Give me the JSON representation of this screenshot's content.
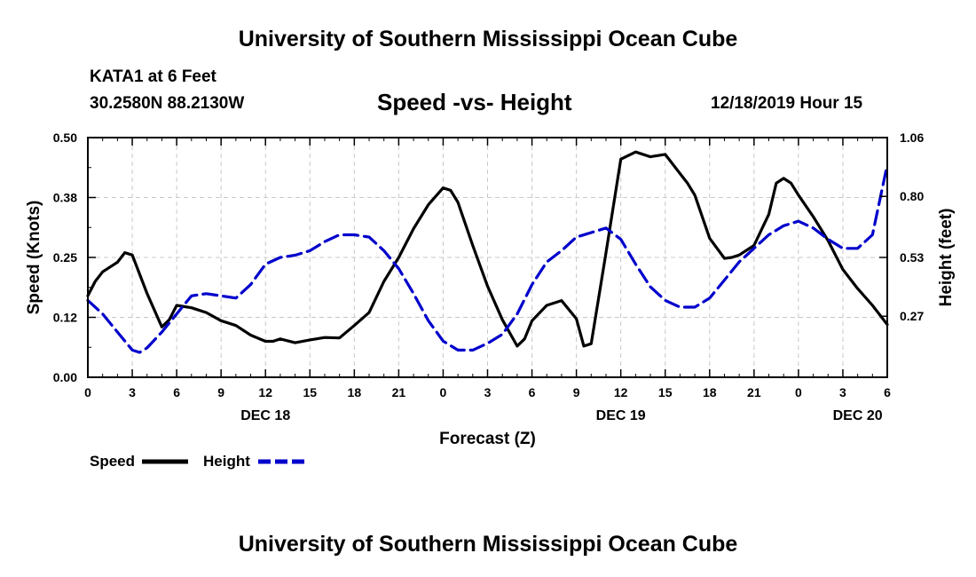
{
  "header": {
    "title": "University of Southern Mississippi Ocean Cube",
    "station": "KATA1 at 6 Feet",
    "coords": "30.2580N 88.2130W",
    "timestamp": "12/18/2019 Hour 15"
  },
  "footer": {
    "title": "University of Southern Mississippi Ocean Cube"
  },
  "chart_data": {
    "type": "line",
    "title": "Speed -vs- Height",
    "xlabel": "Forecast (Z)",
    "ylabel": "Speed (Knots)",
    "y2label": "Height (feet)",
    "xlim": [
      0,
      54
    ],
    "ylim": [
      0,
      0.5
    ],
    "y2lim": [
      0.0,
      1.06
    ],
    "x_ticks": [
      0,
      3,
      6,
      9,
      12,
      15,
      18,
      21,
      24,
      27,
      30,
      33,
      36,
      39,
      42,
      45,
      48,
      51,
      54
    ],
    "x_tick_labels": [
      "0",
      "3",
      "6",
      "9",
      "12",
      "15",
      "18",
      "21",
      "0",
      "3",
      "6",
      "9",
      "12",
      "15",
      "18",
      "21",
      "0",
      "3",
      "6"
    ],
    "date_labels": [
      {
        "x": 12,
        "label": "DEC 18"
      },
      {
        "x": 36,
        "label": "DEC 19"
      },
      {
        "x": 52,
        "label": "DEC 20"
      }
    ],
    "y_ticks": [
      0.0,
      0.125,
      0.25,
      0.375,
      0.5
    ],
    "y_tick_labels": [
      "0.00",
      "0.12",
      "0.25",
      "0.38",
      "0.50"
    ],
    "y2_ticks": [
      0.27,
      0.53,
      0.8,
      1.06
    ],
    "y2_tick_labels": [
      "0.27",
      "0.53",
      "0.80",
      "1.06"
    ],
    "gridlines": true,
    "legend_position": "bottom-left",
    "series": [
      {
        "name": "Speed",
        "axis": "left",
        "color": "#000000",
        "dash": "solid",
        "x": [
          0,
          0.5,
          1,
          1.5,
          2,
          2.5,
          3,
          4,
          5,
          5.5,
          6,
          7,
          8,
          9,
          10,
          11,
          12,
          12.5,
          13,
          14,
          15,
          16,
          17,
          18,
          19,
          20,
          21,
          22,
          23,
          24,
          24.5,
          25,
          26,
          27,
          28,
          29,
          29.5,
          30,
          31,
          32,
          33,
          33.5,
          34,
          35,
          36,
          37,
          38,
          39,
          40,
          40.5,
          41,
          42,
          43,
          43.5,
          44,
          45,
          46,
          46.5,
          47,
          47.5,
          48,
          49,
          50,
          51,
          52,
          53,
          54
        ],
        "values": [
          0.17,
          0.2,
          0.22,
          0.23,
          0.24,
          0.26,
          0.255,
          0.175,
          0.105,
          0.12,
          0.15,
          0.145,
          0.135,
          0.118,
          0.108,
          0.088,
          0.075,
          0.075,
          0.08,
          0.072,
          0.078,
          0.083,
          0.082,
          0.108,
          0.135,
          0.2,
          0.25,
          0.31,
          0.36,
          0.395,
          0.39,
          0.365,
          0.275,
          0.19,
          0.12,
          0.065,
          0.08,
          0.118,
          0.15,
          0.16,
          0.122,
          0.065,
          0.07,
          0.26,
          0.455,
          0.47,
          0.46,
          0.465,
          0.425,
          0.405,
          0.38,
          0.29,
          0.248,
          0.25,
          0.255,
          0.275,
          0.34,
          0.405,
          0.415,
          0.405,
          0.38,
          0.335,
          0.285,
          0.225,
          0.185,
          0.15,
          0.11
        ]
      },
      {
        "name": "Height",
        "axis": "right",
        "color": "#0000cc",
        "dash": "dashed",
        "x": [
          0,
          1,
          2,
          3,
          3.5,
          4,
          5,
          6,
          7,
          8,
          9,
          10,
          11,
          12,
          13,
          14,
          15,
          16,
          17,
          18,
          19,
          20,
          21,
          22,
          23,
          24,
          25,
          26,
          27,
          28,
          29,
          30,
          31,
          32,
          33,
          34,
          35,
          36,
          37,
          38,
          39,
          40,
          41,
          42,
          43,
          44,
          45,
          46,
          47,
          48,
          49,
          50,
          51,
          52,
          53,
          54
        ],
        "values": [
          0.34,
          0.28,
          0.2,
          0.12,
          0.11,
          0.13,
          0.2,
          0.28,
          0.36,
          0.37,
          0.36,
          0.35,
          0.41,
          0.5,
          0.53,
          0.54,
          0.56,
          0.6,
          0.63,
          0.63,
          0.62,
          0.56,
          0.48,
          0.37,
          0.25,
          0.16,
          0.12,
          0.12,
          0.15,
          0.19,
          0.28,
          0.41,
          0.51,
          0.56,
          0.62,
          0.64,
          0.66,
          0.61,
          0.5,
          0.4,
          0.34,
          0.31,
          0.31,
          0.35,
          0.43,
          0.51,
          0.57,
          0.63,
          0.67,
          0.69,
          0.66,
          0.61,
          0.57,
          0.57,
          0.63,
          0.94
        ]
      }
    ]
  }
}
